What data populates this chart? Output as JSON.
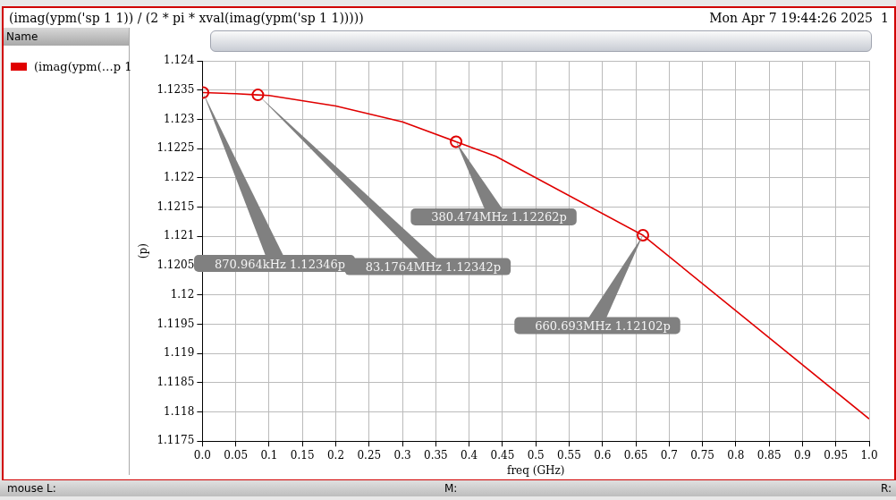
{
  "chart_data": {
    "type": "line",
    "title": "(imag(ypm('sp 1 1)) / (2 * pi * xval(imag(ypm('sp 1 1)))))",
    "xlabel": "freq (GHz)",
    "ylabel": "(p)",
    "x": [
      0.000870964,
      0.05,
      0.0831764,
      0.1,
      0.2,
      0.3,
      0.380474,
      0.44,
      0.660693,
      1.0
    ],
    "series": [
      {
        "name": "(imag(ypm(…p 1",
        "color": "#e00000",
        "values": [
          1.12346,
          1.12344,
          1.12342,
          1.12341,
          1.12323,
          1.12296,
          1.12262,
          1.12237,
          1.12102,
          1.11788
        ]
      },
      {
        "type": "scatter",
        "marker": "circle",
        "color": "#e00000",
        "x": [
          0.000870964,
          0.0831764,
          0.380474,
          0.660693
        ],
        "values": [
          1.12346,
          1.12342,
          1.12262,
          1.12102
        ]
      }
    ],
    "xlim": [
      0,
      1.0
    ],
    "xticks": [
      {
        "value": 0,
        "label": "0.0"
      },
      0.05,
      0.1,
      0.15,
      0.2,
      0.25,
      0.3,
      0.35,
      0.4,
      0.45,
      0.5,
      0.55,
      0.6,
      0.65,
      0.7,
      0.75,
      0.8,
      0.85,
      0.9,
      0.95,
      {
        "value": 1,
        "label": "1.0"
      }
    ],
    "ylim": [
      1.1175,
      1.124
    ],
    "yticks": [
      1.1175,
      1.118,
      1.1185,
      1.119,
      1.1195,
      1.12,
      1.1205,
      1.121,
      1.1215,
      1.122,
      1.1225,
      1.123,
      1.1235,
      1.124
    ],
    "grid": true,
    "legend": "left",
    "marker": "none",
    "line_style": "solid",
    "annotations": [
      "870.964kHz 1.12346p",
      "83.1764MHz 1.12342p",
      "380.474MHz 1.12262p",
      "660.693MHz 1.12102p",
      "Mon Apr 7 19:44:26 2025",
      "1",
      "Name",
      "mouse L:",
      "M:",
      "R:"
    ]
  }
}
